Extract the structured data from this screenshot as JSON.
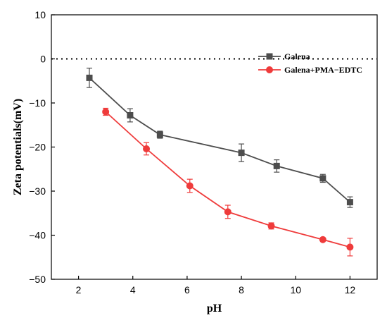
{
  "chart_data": {
    "type": "line",
    "xlabel": "pH",
    "ylabel": "Zeta potentials(mV)",
    "xlim": [
      1,
      13
    ],
    "ylim": [
      -50,
      10
    ],
    "xticks": [
      2,
      4,
      6,
      8,
      10,
      12
    ],
    "yticks": [
      -50,
      -40,
      -30,
      -20,
      -10,
      0,
      10
    ],
    "reference_line": {
      "y": 0,
      "style": "dotted"
    },
    "legend_position": "top-right",
    "series": [
      {
        "name": "Galena",
        "color": "#4d4d4d",
        "marker": "square",
        "x": [
          2.4,
          3.9,
          5.0,
          8.0,
          9.3,
          11.0,
          12.0
        ],
        "y": [
          -4.3,
          -12.8,
          -17.2,
          -21.3,
          -24.3,
          -27.1,
          -32.5
        ],
        "err": [
          2.2,
          1.5,
          0.8,
          2.0,
          1.4,
          0.9,
          1.2
        ]
      },
      {
        "name": "Galena+PMA−EDTC",
        "color": "#ef3b3b",
        "marker": "circle",
        "x": [
          3.0,
          4.5,
          6.1,
          7.5,
          9.1,
          11.0,
          12.0
        ],
        "y": [
          -12.0,
          -20.4,
          -28.8,
          -34.7,
          -37.9,
          -41.0,
          -42.7
        ],
        "err": [
          0.8,
          1.4,
          1.5,
          1.5,
          0.7,
          0.3,
          2.0
        ]
      }
    ]
  }
}
